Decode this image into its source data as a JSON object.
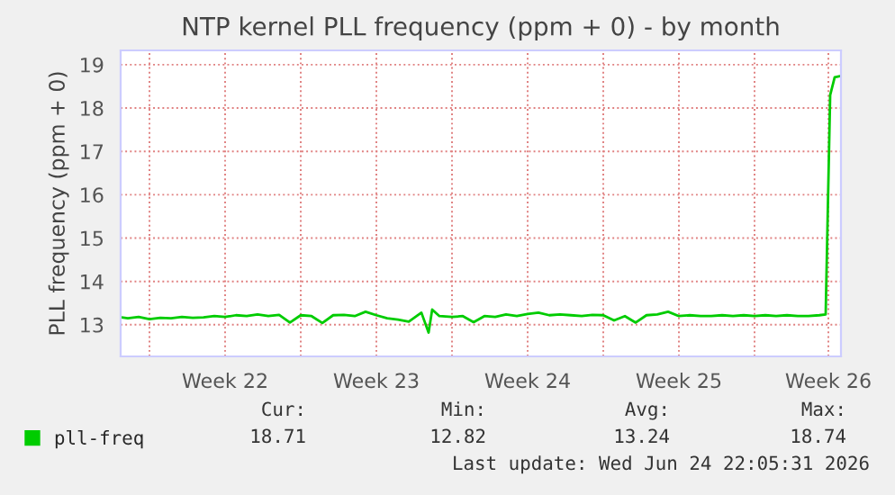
{
  "chart_data": {
    "type": "line",
    "title": "NTP kernel PLL frequency (ppm + 0) - by month",
    "ylabel": "PLL frequency (ppm + 0)",
    "x": [
      "2026-05-23T17:00",
      "2026-05-24T00:00",
      "2026-05-24T12:00",
      "2026-05-25T00:00",
      "2026-05-25T12:00",
      "2026-05-26T00:00",
      "2026-05-26T12:00",
      "2026-05-27T00:00",
      "2026-05-27T12:00",
      "2026-05-28T00:00",
      "2026-05-28T12:00",
      "2026-05-29T00:00",
      "2026-05-29T12:00",
      "2026-05-30T00:00",
      "2026-05-30T12:00",
      "2026-05-31T00:00",
      "2026-05-31T12:00",
      "2026-06-01T00:00",
      "2026-06-01T12:00",
      "2026-06-02T00:00",
      "2026-06-02T12:00",
      "2026-06-03T00:00",
      "2026-06-03T12:00",
      "2026-06-04T00:00",
      "2026-06-04T12:00",
      "2026-06-05T00:00",
      "2026-06-05T12:00",
      "2026-06-06T00:00",
      "2026-06-06T14:00",
      "2026-06-06T22:00",
      "2026-06-07T02:00",
      "2026-06-07T10:00",
      "2026-06-08T00:00",
      "2026-06-08T12:00",
      "2026-06-09T00:00",
      "2026-06-09T12:00",
      "2026-06-10T00:00",
      "2026-06-10T12:00",
      "2026-06-11T00:00",
      "2026-06-11T12:00",
      "2026-06-12T00:00",
      "2026-06-12T12:00",
      "2026-06-13T00:00",
      "2026-06-13T12:00",
      "2026-06-14T00:00",
      "2026-06-14T12:00",
      "2026-06-15T00:00",
      "2026-06-15T12:00",
      "2026-06-16T00:00",
      "2026-06-16T12:00",
      "2026-06-17T00:00",
      "2026-06-17T12:00",
      "2026-06-18T00:00",
      "2026-06-18T12:00",
      "2026-06-19T00:00",
      "2026-06-19T12:00",
      "2026-06-20T00:00",
      "2026-06-20T12:00",
      "2026-06-21T00:00",
      "2026-06-21T12:00",
      "2026-06-22T00:00",
      "2026-06-22T12:00",
      "2026-06-23T00:00",
      "2026-06-23T12:00",
      "2026-06-24T00:00",
      "2026-06-24T12:00",
      "2026-06-25T00:00",
      "2026-06-25T07:00",
      "2026-06-25T12:00",
      "2026-06-25T17:00",
      "2026-06-26T00:00"
    ],
    "series": [
      {
        "name": "pll-freq",
        "color": "#00cc00",
        "values": [
          13.17,
          13.15,
          13.18,
          13.13,
          13.16,
          13.15,
          13.18,
          13.16,
          13.17,
          13.2,
          13.18,
          13.22,
          13.2,
          13.24,
          13.2,
          13.23,
          13.05,
          13.22,
          13.2,
          13.04,
          13.22,
          13.23,
          13.2,
          13.3,
          13.22,
          13.15,
          13.12,
          13.07,
          13.28,
          12.82,
          13.35,
          13.2,
          13.18,
          13.2,
          13.06,
          13.2,
          13.18,
          13.24,
          13.2,
          13.25,
          13.28,
          13.22,
          13.24,
          13.22,
          13.2,
          13.23,
          13.22,
          13.1,
          13.2,
          13.05,
          13.22,
          13.24,
          13.3,
          13.2,
          13.22,
          13.2,
          13.2,
          13.22,
          13.2,
          13.22,
          13.2,
          13.22,
          13.2,
          13.22,
          13.2,
          13.2,
          13.22,
          13.24,
          18.3,
          18.71,
          18.74
        ]
      }
    ],
    "xlim": [
      "2026-05-23T16:00",
      "2026-06-26T00:00"
    ],
    "xticks": [
      {
        "value": "2026-05-25",
        "label": null
      },
      {
        "value": "2026-05-28T12:00",
        "label": "Week 22"
      },
      {
        "value": "2026-06-01",
        "label": null
      },
      {
        "value": "2026-06-04T12:00",
        "label": "Week 23"
      },
      {
        "value": "2026-06-08",
        "label": null
      },
      {
        "value": "2026-06-11T12:00",
        "label": "Week 24"
      },
      {
        "value": "2026-06-15",
        "label": null
      },
      {
        "value": "2026-06-18T12:00",
        "label": "Week 25"
      },
      {
        "value": "2026-06-22",
        "label": null
      },
      {
        "value": "2026-06-25T10:00",
        "label": "Week 26"
      }
    ],
    "ylim": [
      12.27,
      19.33
    ],
    "yticks": [
      13,
      14,
      15,
      16,
      17,
      18,
      19
    ],
    "grid": true,
    "legend": "bottom left",
    "marker": "none",
    "line_style": "solid",
    "annotations": [
      "Cur:",
      "Min:",
      "Avg:",
      "Max:",
      "18.71",
      "12.82",
      "13.24",
      "18.74",
      "Last update: Wed Jun 24 22:05:31 2026"
    ]
  }
}
